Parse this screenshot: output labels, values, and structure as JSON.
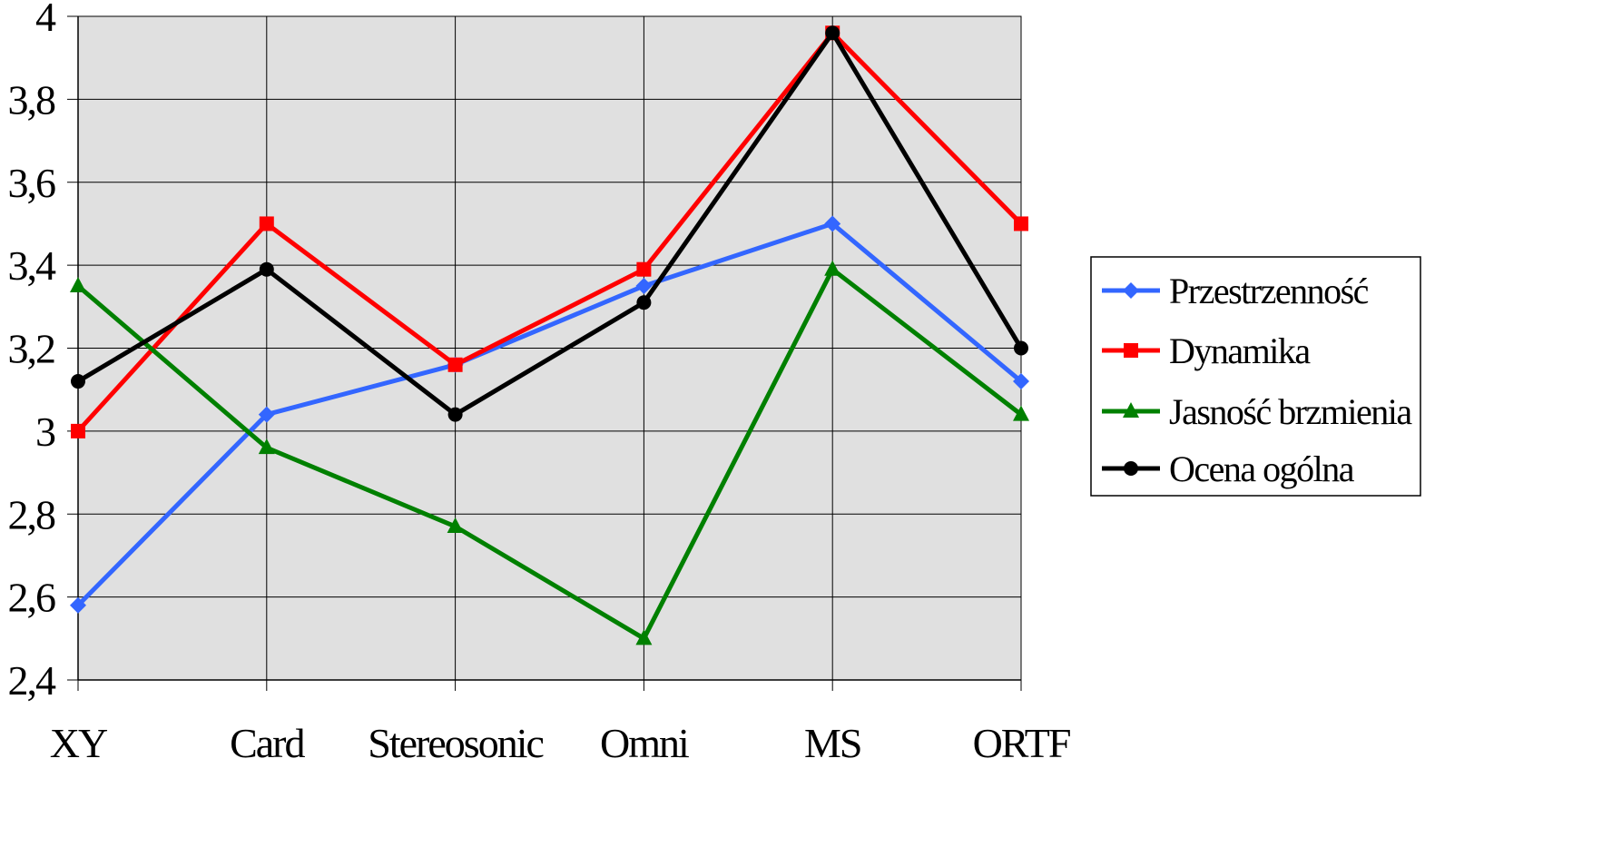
{
  "chart_data": {
    "type": "line",
    "title": "",
    "xlabel": "",
    "ylabel": "",
    "categories": [
      "XY",
      "Card",
      "Stereosonic",
      "Omni",
      "MS",
      "ORTF"
    ],
    "ylim": [
      2.4,
      4
    ],
    "yticks": [
      2.4,
      2.6,
      2.8,
      3,
      3.2,
      3.4,
      3.6,
      3.8,
      4
    ],
    "ytick_labels": [
      "2,4",
      "2,6",
      "2,8",
      "3",
      "3,2",
      "3,4",
      "3,6",
      "3,8",
      "4"
    ],
    "grid": true,
    "plot_background": "#e0e0e0",
    "legend_position": "right",
    "series": [
      {
        "name": "Przestrzenność",
        "color": "#3366ff",
        "marker": "diamond",
        "values": [
          2.58,
          3.04,
          3.16,
          3.35,
          3.5,
          3.12
        ]
      },
      {
        "name": "Dynamika",
        "color": "#ff0000",
        "marker": "square",
        "values": [
          3.0,
          3.5,
          3.16,
          3.39,
          3.96,
          3.5
        ]
      },
      {
        "name": "Jasność brzmienia",
        "color": "#008000",
        "marker": "triangle",
        "values": [
          3.35,
          2.96,
          2.77,
          2.5,
          3.39,
          3.04
        ]
      },
      {
        "name": "Ocena ogólna",
        "color": "#000000",
        "marker": "circle",
        "values": [
          3.12,
          3.39,
          3.04,
          3.31,
          3.96,
          3.2
        ]
      }
    ]
  }
}
